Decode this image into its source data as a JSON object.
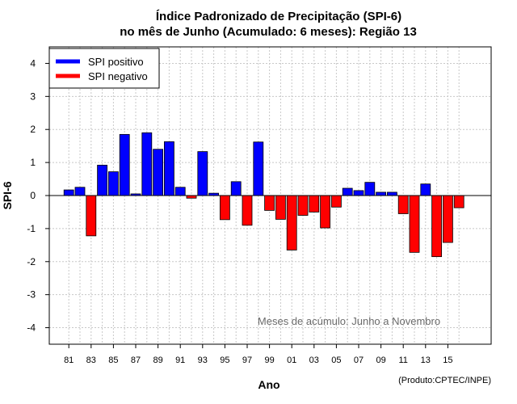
{
  "chart_data": {
    "type": "bar",
    "title_line1": "Índice Padronizado de Precipitação (SPI-6)",
    "title_line2": "no mês de Junho (Acumulado: 6 meses): Região 13",
    "xlabel": "Ano",
    "ylabel": "SPI-6",
    "ylim": [
      -4.5,
      4.5
    ],
    "yticks": [
      -4,
      -3,
      -2,
      -1,
      0,
      1,
      2,
      3,
      4
    ],
    "grid": true,
    "years": [
      1981,
      1982,
      1983,
      1984,
      1985,
      1986,
      1987,
      1988,
      1989,
      1990,
      1991,
      1992,
      1993,
      1994,
      1995,
      1996,
      1997,
      1998,
      1999,
      2000,
      2001,
      2002,
      2003,
      2004,
      2005,
      2006,
      2007,
      2008,
      2009,
      2010,
      2011,
      2012,
      2013,
      2014,
      2015,
      2016
    ],
    "xtick_labels": [
      "81",
      "83",
      "85",
      "87",
      "89",
      "91",
      "93",
      "95",
      "97",
      "99",
      "01",
      "03",
      "05",
      "07",
      "09",
      "11",
      "13",
      "15"
    ],
    "values": [
      0.17,
      0.25,
      -1.22,
      0.92,
      0.72,
      1.85,
      0.05,
      1.9,
      1.4,
      1.63,
      0.25,
      -0.08,
      1.33,
      0.07,
      -0.73,
      0.42,
      -0.9,
      1.62,
      -0.45,
      -0.72,
      -1.65,
      -0.6,
      -0.5,
      -0.98,
      -0.35,
      0.22,
      0.15,
      0.4,
      0.1,
      0.1,
      -0.55,
      -1.72,
      0.35,
      -1.85,
      -1.42,
      -0.37
    ],
    "legend": [
      {
        "label": "SPI positivo",
        "color": "#0000ff"
      },
      {
        "label": "SPI negativo",
        "color": "#ff0000"
      }
    ],
    "legend_position": "top-left",
    "annotation": "Meses de acúmulo: Junho a Novembro",
    "credit": "(Produto:CPTEC/INPE)"
  }
}
